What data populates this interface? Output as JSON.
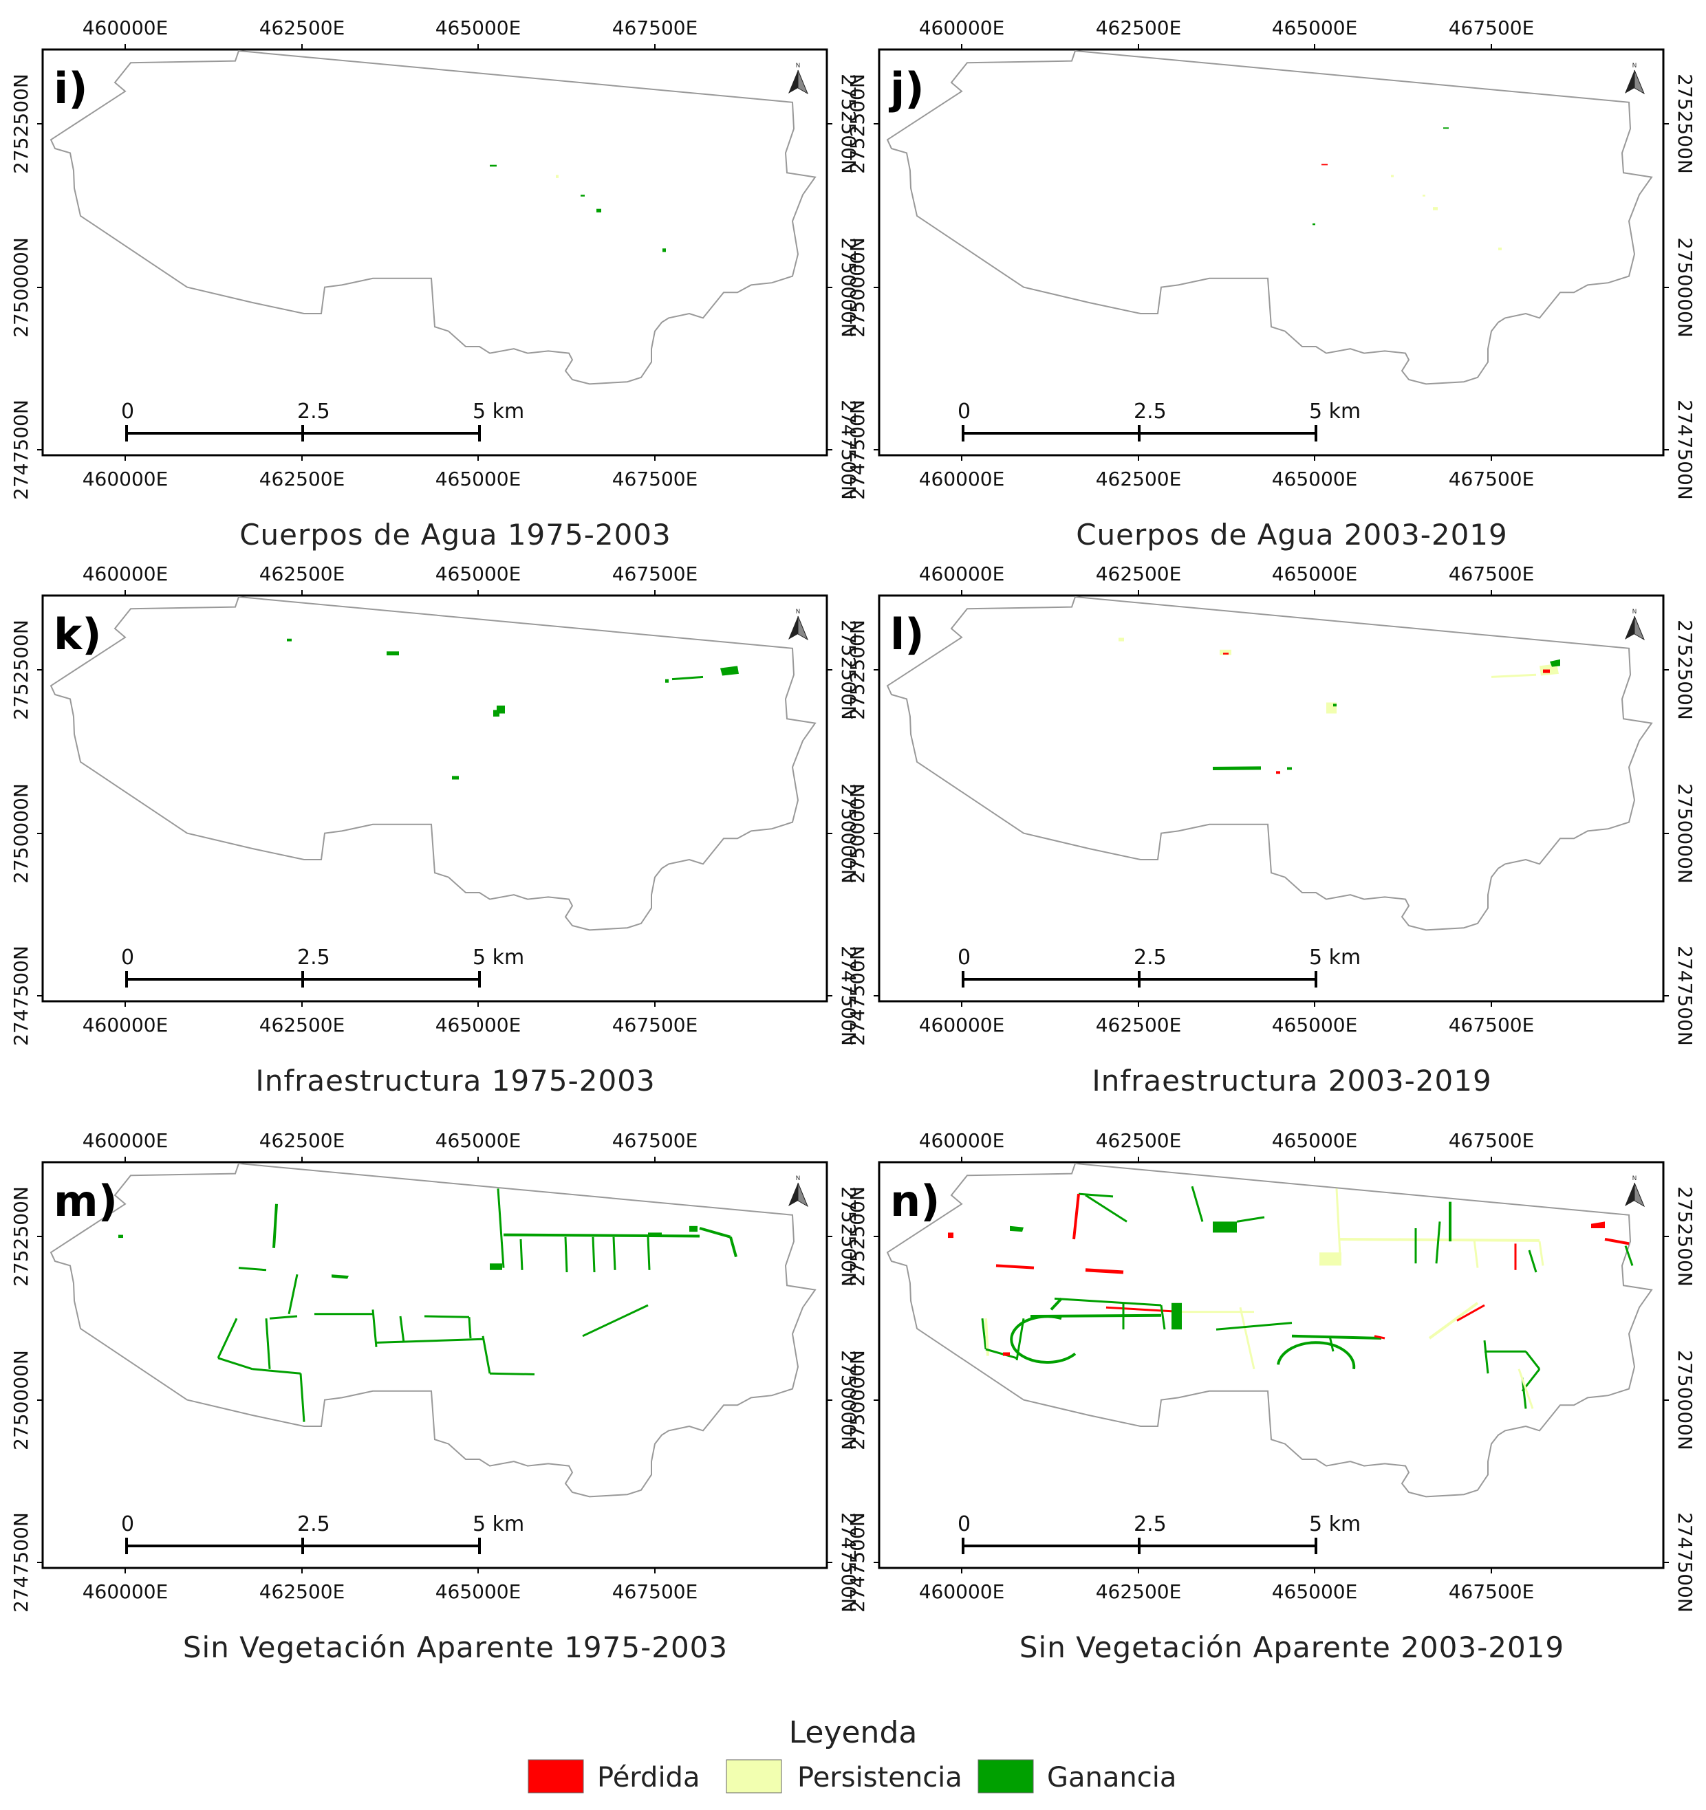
{
  "colors": {
    "perdida": "#ff0000",
    "persistencia": "#f2ffb0",
    "ganancia": "#00a000",
    "boundary": "#999999",
    "frame": "#000000"
  },
  "axis": {
    "x_ticks": [
      "460000E",
      "462500E",
      "465000E",
      "467500E"
    ],
    "y_ticks": [
      "2752500N",
      "2750000N",
      "2747500N"
    ]
  },
  "scalebar": {
    "labels": [
      "0",
      "2.5",
      "5 km"
    ]
  },
  "north_arrow": {
    "label": "N",
    "icon": "north-arrow-icon"
  },
  "panels": [
    {
      "id": "i",
      "letter": "i)",
      "title": "Cuerpos de Agua 1975-2003"
    },
    {
      "id": "j",
      "letter": "j)",
      "title": "Cuerpos de Agua 2003-2019"
    },
    {
      "id": "k",
      "letter": "k)",
      "title": "Infraestructura 1975-2003"
    },
    {
      "id": "l",
      "letter": "l)",
      "title": "Infraestructura 2003-2019"
    },
    {
      "id": "m",
      "letter": "m)",
      "title": "Sin Vegetación Aparente 1975-2003"
    },
    {
      "id": "n",
      "letter": "n)",
      "title": "Sin Vegetación Aparente 2003-2019"
    }
  ],
  "legend": {
    "title": "Leyenda",
    "items": [
      {
        "label": "Pérdida",
        "color": "#ff0000"
      },
      {
        "label": "Persistencia",
        "color": "#f2ffb0"
      },
      {
        "label": "Ganancia",
        "color": "#00a000"
      }
    ]
  }
}
